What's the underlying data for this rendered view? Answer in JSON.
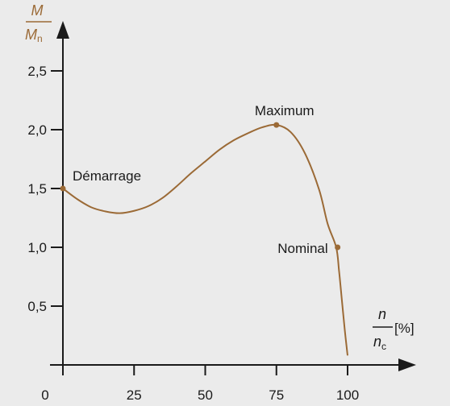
{
  "chart_data": {
    "type": "line",
    "ylabel": {
      "numerator": "M",
      "denominator": "M",
      "denominator_sub": "n"
    },
    "xlabel": {
      "numerator": "n",
      "denominator": "n",
      "denominator_sub": "c",
      "unit": "[%]"
    },
    "xlim": [
      0,
      100
    ],
    "ylim": [
      0,
      2.5
    ],
    "xticks": [
      0,
      25,
      50,
      75,
      100
    ],
    "xtick_labels": [
      "0",
      "25",
      "50",
      "75",
      "100"
    ],
    "yticks": [
      0.5,
      1.0,
      1.5,
      2.0,
      2.5
    ],
    "ytick_labels": [
      "0,5",
      "1,0",
      "1,5",
      "2,0",
      "2,5"
    ],
    "grid": false,
    "series": [
      {
        "x": [
          0,
          5,
          10,
          15,
          20,
          25,
          30,
          35,
          40,
          45,
          50,
          55,
          60,
          65,
          70,
          75,
          80,
          85,
          90,
          93,
          96,
          97,
          98,
          99,
          100
        ],
        "y": [
          1.5,
          1.41,
          1.34,
          1.305,
          1.29,
          1.31,
          1.35,
          1.42,
          1.52,
          1.63,
          1.73,
          1.83,
          1.91,
          1.97,
          2.02,
          2.04,
          1.98,
          1.8,
          1.49,
          1.2,
          1.0,
          0.8,
          0.55,
          0.3,
          0.08
        ],
        "color": "#9b6a36"
      }
    ],
    "annotations": [
      {
        "label": "Démarrage",
        "x": 0,
        "y": 1.5
      },
      {
        "label": "Maximum",
        "x": 75,
        "y": 2.04
      },
      {
        "label": "Nominal",
        "x": 96.5,
        "y": 1.0
      }
    ],
    "colors": {
      "curve": "#9b6a36",
      "label_accent": "#9b6a36",
      "axis": "#1a1a1a",
      "background": "#ebebeb"
    }
  }
}
